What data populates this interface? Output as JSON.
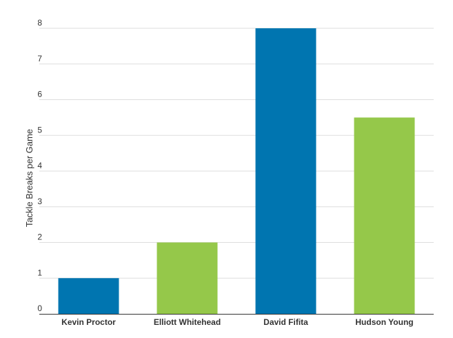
{
  "chart_data": {
    "type": "bar",
    "title": "",
    "xlabel": "",
    "ylabel": "Tackle Breaks per Game",
    "categories": [
      "Kevin Proctor",
      "Elliott Whitehead",
      "David Fifita",
      "Hudson Young"
    ],
    "values": [
      1,
      2,
      8,
      5.5
    ],
    "bar_colors": [
      "#0075b0",
      "#95c84a",
      "#0075b0",
      "#95c84a"
    ],
    "ylim": [
      0,
      8
    ],
    "yticks": [
      0,
      1,
      2,
      3,
      4,
      5,
      6,
      7,
      8
    ],
    "grid": true,
    "legend": "none"
  }
}
